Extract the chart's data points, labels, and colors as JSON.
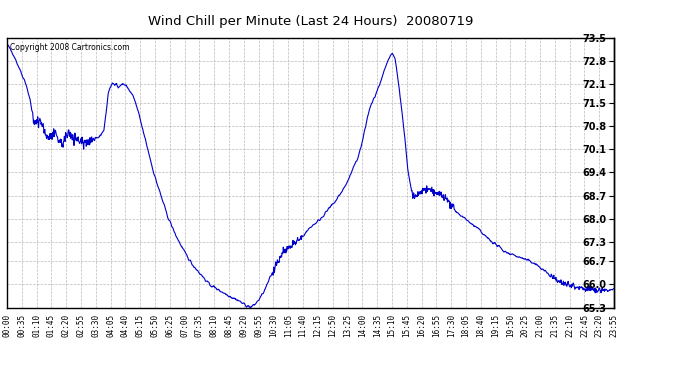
{
  "title": "Wind Chill per Minute (Last 24 Hours)  20080719",
  "copyright_text": "Copyright 2008 Cartronics.com",
  "line_color": "#0000cc",
  "bg_color": "#ffffff",
  "plot_bg_color": "#ffffff",
  "grid_color": "#aaaaaa",
  "ylim": [
    65.3,
    73.5
  ],
  "yticks": [
    65.3,
    66.0,
    66.7,
    67.3,
    68.0,
    68.7,
    69.4,
    70.1,
    70.8,
    71.5,
    72.1,
    72.8,
    73.5
  ],
  "xtick_labels": [
    "00:00",
    "00:35",
    "01:10",
    "01:45",
    "02:20",
    "02:55",
    "03:30",
    "04:05",
    "04:40",
    "05:15",
    "05:50",
    "06:25",
    "07:00",
    "07:35",
    "08:10",
    "08:45",
    "09:20",
    "09:55",
    "10:30",
    "11:05",
    "11:40",
    "12:15",
    "12:50",
    "13:25",
    "14:00",
    "14:35",
    "15:10",
    "15:45",
    "16:20",
    "16:55",
    "17:30",
    "18:05",
    "18:40",
    "19:15",
    "19:50",
    "20:25",
    "21:00",
    "21:35",
    "22:10",
    "22:45",
    "23:20",
    "23:55"
  ],
  "num_points": 1440,
  "seed": 42,
  "key_points": [
    [
      0,
      73.3
    ],
    [
      15,
      73.0
    ],
    [
      25,
      72.7
    ],
    [
      35,
      72.4
    ],
    [
      45,
      72.1
    ],
    [
      55,
      71.6
    ],
    [
      60,
      71.2
    ],
    [
      65,
      70.9
    ],
    [
      70,
      70.85
    ],
    [
      75,
      70.9
    ],
    [
      80,
      71.0
    ],
    [
      85,
      70.8
    ],
    [
      90,
      70.6
    ],
    [
      95,
      70.5
    ],
    [
      100,
      70.45
    ],
    [
      105,
      70.5
    ],
    [
      110,
      70.55
    ],
    [
      115,
      70.5
    ],
    [
      120,
      70.4
    ],
    [
      125,
      70.35
    ],
    [
      130,
      70.3
    ],
    [
      135,
      70.35
    ],
    [
      140,
      70.5
    ],
    [
      145,
      70.55
    ],
    [
      150,
      70.6
    ],
    [
      155,
      70.5
    ],
    [
      160,
      70.45
    ],
    [
      165,
      70.4
    ],
    [
      170,
      70.38
    ],
    [
      175,
      70.35
    ],
    [
      180,
      70.3
    ],
    [
      190,
      70.35
    ],
    [
      200,
      70.38
    ],
    [
      210,
      70.4
    ],
    [
      220,
      70.5
    ],
    [
      230,
      70.7
    ],
    [
      235,
      71.2
    ],
    [
      240,
      71.8
    ],
    [
      245,
      72.0
    ],
    [
      250,
      72.1
    ],
    [
      255,
      72.05
    ],
    [
      260,
      72.1
    ],
    [
      265,
      72.0
    ],
    [
      270,
      72.05
    ],
    [
      275,
      72.1
    ],
    [
      280,
      72.05
    ],
    [
      285,
      72.0
    ],
    [
      290,
      71.9
    ],
    [
      295,
      71.8
    ],
    [
      300,
      71.7
    ],
    [
      310,
      71.3
    ],
    [
      320,
      70.8
    ],
    [
      330,
      70.3
    ],
    [
      340,
      69.8
    ],
    [
      350,
      69.3
    ],
    [
      360,
      68.9
    ],
    [
      370,
      68.5
    ],
    [
      380,
      68.1
    ],
    [
      390,
      67.8
    ],
    [
      400,
      67.5
    ],
    [
      420,
      67.0
    ],
    [
      440,
      66.6
    ],
    [
      460,
      66.3
    ],
    [
      480,
      66.0
    ],
    [
      500,
      65.85
    ],
    [
      520,
      65.7
    ],
    [
      535,
      65.6
    ],
    [
      548,
      65.52
    ],
    [
      556,
      65.45
    ],
    [
      562,
      65.4
    ],
    [
      566,
      65.37
    ],
    [
      570,
      65.35
    ],
    [
      573,
      65.33
    ],
    [
      576,
      65.32
    ],
    [
      578,
      65.31
    ],
    [
      580,
      65.32
    ],
    [
      583,
      65.35
    ],
    [
      588,
      65.4
    ],
    [
      595,
      65.5
    ],
    [
      603,
      65.65
    ],
    [
      610,
      65.8
    ],
    [
      617,
      66.0
    ],
    [
      622,
      66.15
    ],
    [
      627,
      66.3
    ],
    [
      632,
      66.45
    ],
    [
      637,
      66.6
    ],
    [
      642,
      66.7
    ],
    [
      647,
      66.8
    ],
    [
      652,
      66.9
    ],
    [
      657,
      67.0
    ],
    [
      662,
      67.05
    ],
    [
      667,
      67.1
    ],
    [
      672,
      67.15
    ],
    [
      677,
      67.2
    ],
    [
      682,
      67.25
    ],
    [
      690,
      67.3
    ],
    [
      700,
      67.45
    ],
    [
      710,
      67.6
    ],
    [
      720,
      67.75
    ],
    [
      730,
      67.85
    ],
    [
      740,
      67.95
    ],
    [
      750,
      68.1
    ],
    [
      760,
      68.25
    ],
    [
      770,
      68.4
    ],
    [
      780,
      68.55
    ],
    [
      790,
      68.75
    ],
    [
      800,
      68.95
    ],
    [
      810,
      69.2
    ],
    [
      820,
      69.5
    ],
    [
      830,
      69.8
    ],
    [
      840,
      70.2
    ],
    [
      845,
      70.5
    ],
    [
      850,
      70.8
    ],
    [
      855,
      71.1
    ],
    [
      860,
      71.35
    ],
    [
      865,
      71.5
    ],
    [
      870,
      71.65
    ],
    [
      875,
      71.8
    ],
    [
      880,
      71.95
    ],
    [
      885,
      72.1
    ],
    [
      890,
      72.3
    ],
    [
      895,
      72.5
    ],
    [
      900,
      72.7
    ],
    [
      905,
      72.85
    ],
    [
      910,
      72.95
    ],
    [
      913,
      73.0
    ],
    [
      916,
      72.95
    ],
    [
      920,
      72.85
    ],
    [
      923,
      72.6
    ],
    [
      926,
      72.3
    ],
    [
      930,
      71.9
    ],
    [
      935,
      71.4
    ],
    [
      940,
      70.8
    ],
    [
      945,
      70.2
    ],
    [
      950,
      69.5
    ],
    [
      955,
      69.1
    ],
    [
      958,
      68.9
    ],
    [
      960,
      68.75
    ],
    [
      963,
      68.7
    ],
    [
      966,
      68.65
    ],
    [
      970,
      68.7
    ],
    [
      975,
      68.75
    ],
    [
      980,
      68.8
    ],
    [
      985,
      68.85
    ],
    [
      990,
      68.9
    ],
    [
      995,
      68.88
    ],
    [
      1000,
      68.85
    ],
    [
      1010,
      68.8
    ],
    [
      1020,
      68.75
    ],
    [
      1030,
      68.7
    ],
    [
      1040,
      68.6
    ],
    [
      1050,
      68.45
    ],
    [
      1060,
      68.3
    ],
    [
      1070,
      68.15
    ],
    [
      1080,
      68.05
    ],
    [
      1090,
      67.95
    ],
    [
      1100,
      67.85
    ],
    [
      1110,
      67.75
    ],
    [
      1120,
      67.65
    ],
    [
      1130,
      67.5
    ],
    [
      1140,
      67.4
    ],
    [
      1150,
      67.3
    ],
    [
      1160,
      67.2
    ],
    [
      1170,
      67.1
    ],
    [
      1180,
      67.0
    ],
    [
      1190,
      66.95
    ],
    [
      1200,
      66.9
    ],
    [
      1210,
      66.85
    ],
    [
      1220,
      66.8
    ],
    [
      1230,
      66.75
    ],
    [
      1240,
      66.7
    ],
    [
      1250,
      66.65
    ],
    [
      1260,
      66.55
    ],
    [
      1270,
      66.45
    ],
    [
      1280,
      66.35
    ],
    [
      1290,
      66.25
    ],
    [
      1300,
      66.15
    ],
    [
      1310,
      66.1
    ],
    [
      1320,
      66.05
    ],
    [
      1330,
      66.0
    ],
    [
      1340,
      65.97
    ],
    [
      1350,
      65.95
    ],
    [
      1360,
      65.9
    ],
    [
      1370,
      65.87
    ],
    [
      1380,
      65.85
    ],
    [
      1390,
      65.83
    ],
    [
      1400,
      65.82
    ],
    [
      1410,
      65.82
    ],
    [
      1420,
      65.82
    ],
    [
      1430,
      65.83
    ],
    [
      1439,
      65.85
    ]
  ]
}
